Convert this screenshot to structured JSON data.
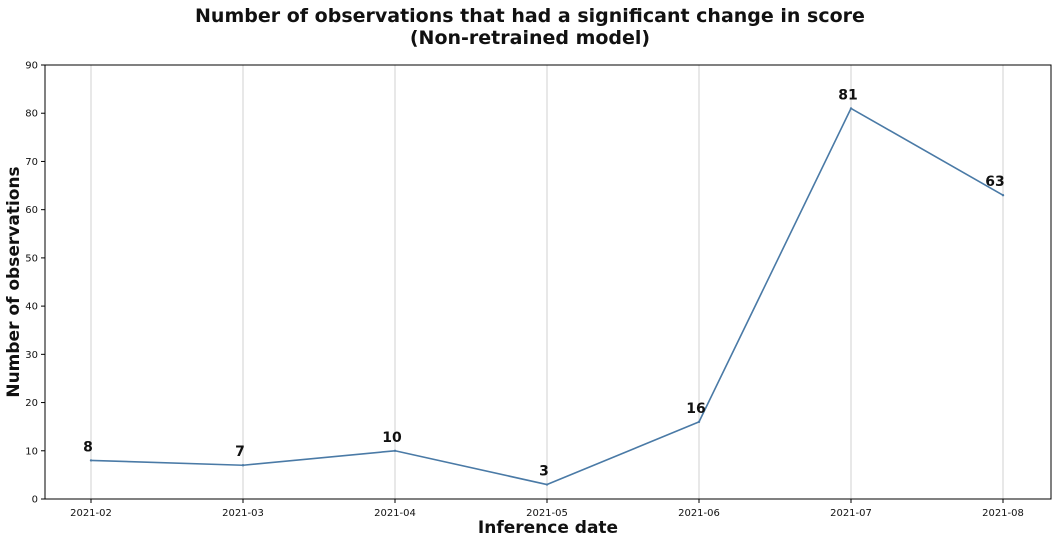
{
  "chart_data": {
    "type": "line",
    "title": "Number of observations that had a significant change in score",
    "subtitle": "(Non-retrained model)",
    "xlabel": "Inference date",
    "ylabel": "Number of observations",
    "categories": [
      "2021-02",
      "2021-03",
      "2021-04",
      "2021-05",
      "2021-06",
      "2021-07",
      "2021-08"
    ],
    "series": [
      {
        "values": [
          8,
          7,
          10,
          3,
          16,
          81,
          63
        ]
      }
    ],
    "data_labels": [
      "8",
      "7",
      "10",
      "3",
      "16",
      "81",
      "63"
    ],
    "ylim": [
      0,
      90
    ],
    "yticks": [
      "0",
      "10",
      "20",
      "30",
      "40",
      "50",
      "60",
      "70",
      "80",
      "90"
    ],
    "grid": "vertical",
    "colors": {
      "line": "#4a7aa6",
      "grid": "#d9d9d9"
    }
  }
}
